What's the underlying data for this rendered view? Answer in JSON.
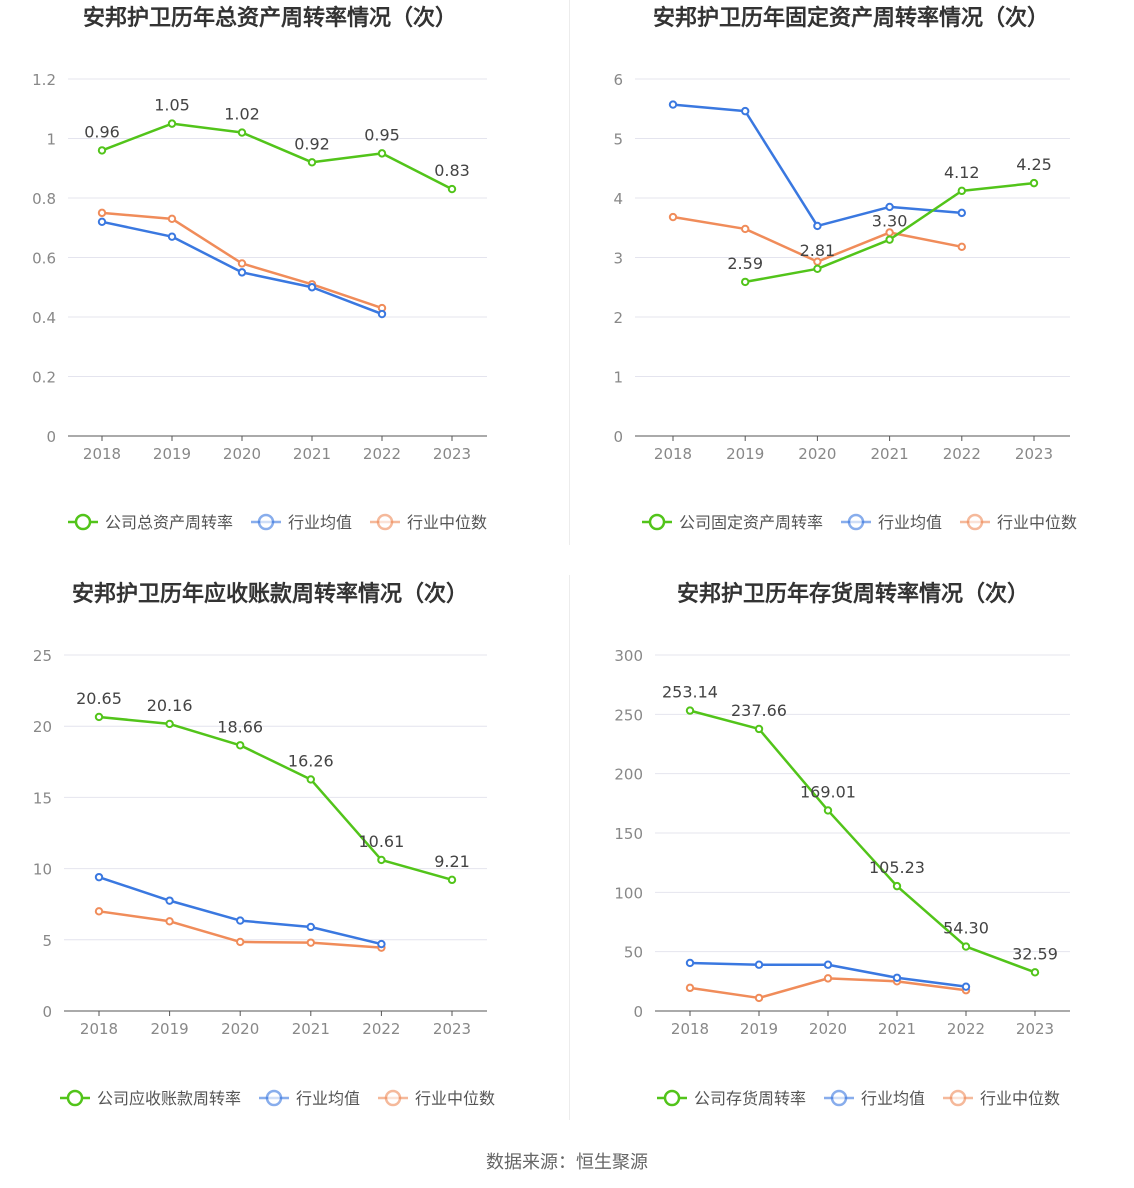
{
  "source_text": "数据来源：恒生聚源",
  "colors": {
    "company": "#52c41a",
    "avg": "#3a78e0",
    "median": "#f08c5a",
    "grid": "#e4e4ee",
    "axis": "#555555",
    "tick": "#888888",
    "label": "#444444",
    "title": "#333333"
  },
  "chart_data": [
    {
      "type": "line",
      "title": "安邦护卫历年总资产周转率情况（次）",
      "x": [
        "2018",
        "2019",
        "2020",
        "2021",
        "2022",
        "2023"
      ],
      "ylim": [
        0,
        1.2
      ],
      "yticks": [
        "0",
        "0.2",
        "0.4",
        "0.6",
        "0.8",
        "1",
        "1.2"
      ],
      "ytick_values": [
        0,
        0.2,
        0.4,
        0.6,
        0.8,
        1.0,
        1.2
      ],
      "series": [
        {
          "name": "公司总资产周转率",
          "role": "company",
          "values": [
            0.96,
            1.05,
            1.02,
            0.92,
            0.95,
            0.83
          ],
          "labels": [
            "0.96",
            "1.05",
            "1.02",
            "0.92",
            "0.95",
            "0.83"
          ]
        },
        {
          "name": "行业均值",
          "role": "avg",
          "values": [
            0.72,
            0.67,
            0.55,
            0.5,
            0.41,
            null
          ]
        },
        {
          "name": "行业中位数",
          "role": "median",
          "values": [
            0.75,
            0.73,
            0.58,
            0.51,
            0.43,
            null
          ]
        }
      ]
    },
    {
      "type": "line",
      "title": "安邦护卫历年固定资产周转率情况（次）",
      "x": [
        "2018",
        "2019",
        "2020",
        "2021",
        "2022",
        "2023"
      ],
      "ylim": [
        0,
        6
      ],
      "yticks": [
        "0",
        "1",
        "2",
        "3",
        "4",
        "5",
        "6"
      ],
      "ytick_values": [
        0,
        1,
        2,
        3,
        4,
        5,
        6
      ],
      "series": [
        {
          "name": "公司固定资产周转率",
          "role": "company",
          "values": [
            null,
            2.59,
            2.81,
            3.3,
            4.12,
            4.25
          ],
          "labels": [
            "",
            "2.59",
            "2.81",
            "3.30",
            "4.12",
            "4.25"
          ]
        },
        {
          "name": "行业均值",
          "role": "avg",
          "values": [
            5.57,
            5.46,
            3.53,
            3.85,
            3.75,
            null
          ]
        },
        {
          "name": "行业中位数",
          "role": "median",
          "values": [
            3.68,
            3.48,
            2.93,
            3.42,
            3.18,
            null
          ]
        }
      ]
    },
    {
      "type": "line",
      "title": "安邦护卫历年应收账款周转率情况（次）",
      "x": [
        "2018",
        "2019",
        "2020",
        "2021",
        "2022",
        "2023"
      ],
      "ylim": [
        0,
        25
      ],
      "yticks": [
        "0",
        "5",
        "10",
        "15",
        "20",
        "25"
      ],
      "ytick_values": [
        0,
        5,
        10,
        15,
        20,
        25
      ],
      "series": [
        {
          "name": "公司应收账款周转率",
          "role": "company",
          "values": [
            20.65,
            20.16,
            18.66,
            16.26,
            10.61,
            9.21
          ],
          "labels": [
            "20.65",
            "20.16",
            "18.66",
            "16.26",
            "10.61",
            "9.21"
          ]
        },
        {
          "name": "行业均值",
          "role": "avg",
          "values": [
            9.4,
            7.75,
            6.35,
            5.9,
            4.7,
            null
          ]
        },
        {
          "name": "行业中位数",
          "role": "median",
          "values": [
            7.0,
            6.3,
            4.85,
            4.8,
            4.45,
            null
          ]
        }
      ]
    },
    {
      "type": "line",
      "title": "安邦护卫历年存货周转率情况（次）",
      "x": [
        "2018",
        "2019",
        "2020",
        "2021",
        "2022",
        "2023"
      ],
      "ylim": [
        0,
        300
      ],
      "yticks": [
        "0",
        "50",
        "100",
        "150",
        "200",
        "250",
        "300"
      ],
      "ytick_values": [
        0,
        50,
        100,
        150,
        200,
        250,
        300
      ],
      "series": [
        {
          "name": "公司存货周转率",
          "role": "company",
          "values": [
            253.14,
            237.66,
            169.01,
            105.23,
            54.3,
            32.59
          ],
          "labels": [
            "253.14",
            "237.66",
            "169.01",
            "105.23",
            "54.30",
            "32.59"
          ]
        },
        {
          "name": "行业均值",
          "role": "avg",
          "values": [
            40.5,
            39.0,
            39.0,
            28.0,
            20.5,
            null
          ]
        },
        {
          "name": "行业中位数",
          "role": "median",
          "values": [
            19.5,
            11.0,
            27.5,
            25.0,
            17.5,
            null
          ]
        }
      ]
    }
  ]
}
